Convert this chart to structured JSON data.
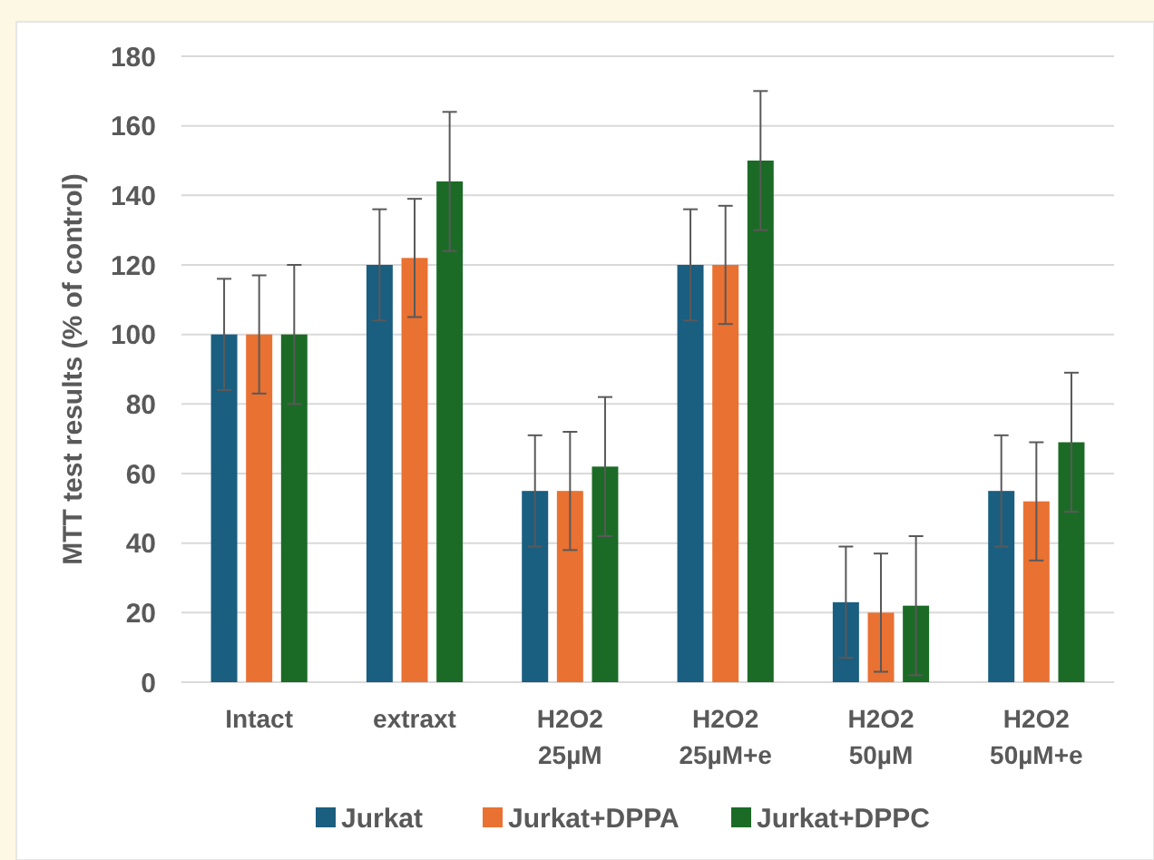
{
  "chart_data": {
    "type": "bar",
    "ylabel": "MTT test results (% of control)",
    "categories": [
      "Intact",
      "extraxt",
      "H2O2 25µM",
      "H2O2 25µM+e",
      "H2O2 50µM",
      "H2O2 50µM+e"
    ],
    "series": [
      {
        "name": "Jurkat",
        "color": "#1a5e80",
        "values": [
          100,
          120,
          55,
          120,
          23,
          55
        ],
        "errors": [
          16,
          16,
          16,
          16,
          16,
          16
        ]
      },
      {
        "name": "Jurkat+DPPA",
        "color": "#e97132",
        "values": [
          100,
          122,
          55,
          120,
          20,
          52
        ],
        "errors": [
          17,
          17,
          17,
          17,
          17,
          17
        ]
      },
      {
        "name": "Jurkat+DPPC",
        "color": "#1b6b26",
        "values": [
          100,
          144,
          62,
          150,
          22,
          69
        ],
        "errors": [
          20,
          20,
          20,
          20,
          20,
          20
        ]
      }
    ],
    "ylim": [
      0,
      180
    ],
    "yticks": [
      0,
      20,
      40,
      60,
      80,
      100,
      120,
      140,
      160,
      180
    ],
    "grid": "y",
    "legend": "bottom"
  }
}
